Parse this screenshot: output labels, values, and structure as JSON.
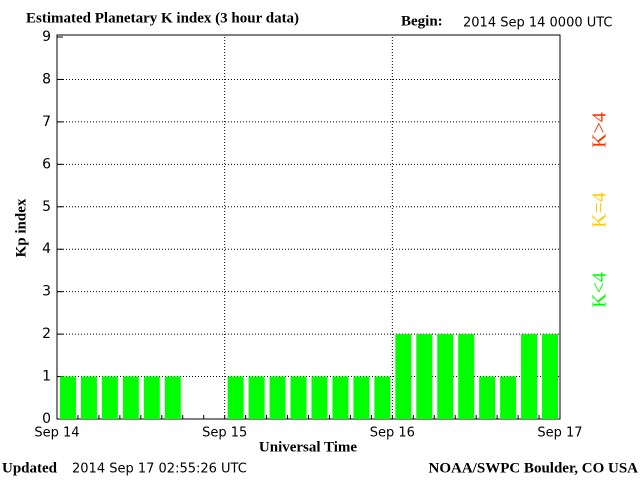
{
  "chart_data": {
    "type": "bar",
    "title": "Estimated Planetary K index (3 hour data)",
    "begin_label": "Begin:",
    "begin": "2014 Sep 14 0000 UTC",
    "y_label": "Kp index",
    "x_label": "Universal Time",
    "updated_label": "Updated",
    "updated": "2014 Sep 17 02:55:26 UTC",
    "credit": "NOAA/SWPC Boulder, CO USA",
    "x_ticks": [
      "Sep 14",
      "Sep 15",
      "Sep 16",
      "Sep 17"
    ],
    "values": [
      1,
      1,
      1,
      1,
      1,
      1,
      null,
      null,
      1,
      1,
      1,
      1,
      1,
      1,
      1,
      1,
      2,
      2,
      2,
      2,
      1,
      1,
      2,
      2
    ],
    "color": "#00ff00",
    "ylim": [
      0,
      9
    ],
    "yticks": [
      0,
      1,
      2,
      3,
      4,
      5,
      6,
      7,
      8,
      9
    ],
    "grid": true,
    "legend": [
      {
        "name": "K<4",
        "color": "#00ff00"
      },
      {
        "name": "K=4",
        "color": "#ffcc00"
      },
      {
        "name": "K>4",
        "color": "#ff3300"
      }
    ]
  }
}
